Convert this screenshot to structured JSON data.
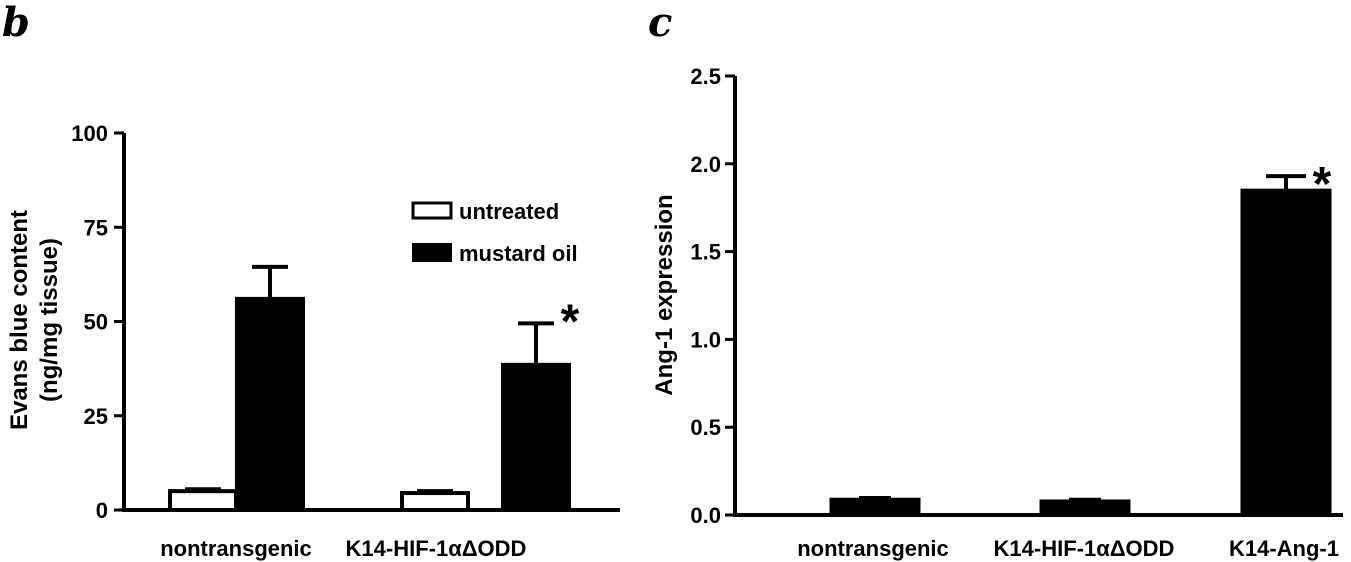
{
  "chart_data": [
    {
      "type": "bar",
      "panel_label": "b",
      "ylabel_lines": [
        "Evans blue content",
        "(ng/mg tissue)"
      ],
      "ylim": [
        0,
        100
      ],
      "yticks": [
        "0",
        "25",
        "50",
        "75",
        "100"
      ],
      "ytick_values": [
        0,
        25,
        50,
        75,
        100
      ],
      "categories": [
        "nontransgenic",
        "K14-HIF-1αΔODD"
      ],
      "series": [
        {
          "name": "untreated",
          "values": [
            5,
            4.5
          ],
          "errors": [
            0.5,
            0.5
          ],
          "fill": "#ffffff"
        },
        {
          "name": "mustard oil",
          "values": [
            56,
            38.5
          ],
          "errors": [
            8.5,
            11
          ],
          "fill": "#000000"
        }
      ],
      "legend": {
        "position": "top-right",
        "entries": [
          "untreated",
          "mustard oil"
        ]
      },
      "annotations": [
        {
          "text": "*",
          "category": "K14-HIF-1αΔODD",
          "series": "mustard oil"
        }
      ]
    },
    {
      "type": "bar",
      "panel_label": "c",
      "ylabel": "Ang-1 expression",
      "ylim": [
        0,
        2.5
      ],
      "yticks": [
        "0.0",
        "0.5",
        "1.0",
        "1.5",
        "2.0",
        "2.5"
      ],
      "ytick_values": [
        0,
        0.5,
        1,
        1.5,
        2,
        2.5
      ],
      "categories": [
        "nontransgenic",
        "K14-HIF-1αΔODD",
        "K14-Ang-1"
      ],
      "values": [
        0.09,
        0.08,
        1.85
      ],
      "errors": [
        0.01,
        0.01,
        0.08
      ],
      "fill": "#000000",
      "annotations": [
        {
          "text": "*",
          "category": "K14-Ang-1"
        }
      ]
    }
  ]
}
